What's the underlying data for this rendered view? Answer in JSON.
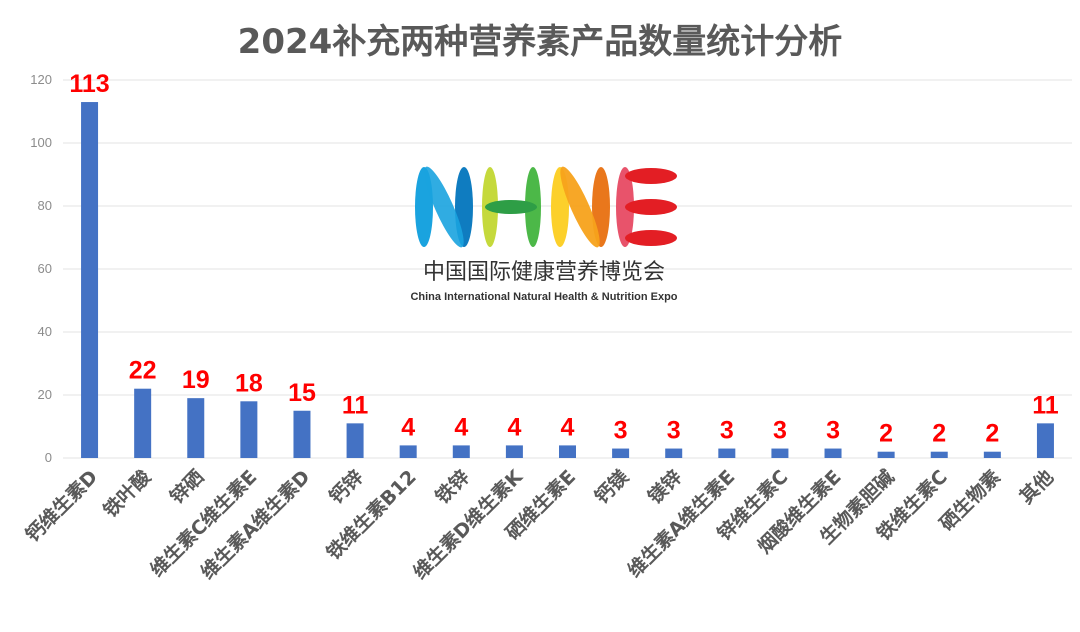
{
  "chart_data": {
    "type": "bar",
    "title": "2024补充两种营养素产品数量统计分析",
    "xlabel": "",
    "ylabel": "",
    "ylim": [
      0,
      120
    ],
    "yticks": [
      0,
      20,
      40,
      60,
      80,
      100,
      120
    ],
    "grid": true,
    "legend": "none",
    "bar_color": "#4472c4",
    "label_color": "#ff0000",
    "categories": [
      "钙维生素D",
      "铁叶酸",
      "锌硒",
      "维生素C维生素E",
      "维生素A维生素D",
      "钙锌",
      "铁维生素B12",
      "铁锌",
      "维生素D维生素K",
      "硒维生素E",
      "钙镁",
      "镁锌",
      "维生素A维生素E",
      "锌维生素C",
      "烟酸维生素E",
      "生物素胆碱",
      "铁维生素C",
      "硒生物素",
      "其他"
    ],
    "values": [
      113,
      22,
      19,
      18,
      15,
      11,
      4,
      4,
      4,
      4,
      3,
      3,
      3,
      3,
      3,
      2,
      2,
      2,
      11
    ]
  },
  "logo": {
    "letters": [
      "N",
      "H",
      "N",
      "E"
    ],
    "colors": [
      "#1aa3df",
      "#8dc63f",
      "#f7a21b",
      "#e31e24"
    ],
    "cn_name": "中国国际健康营养博览会",
    "en_name": "China International Natural Health & Nutrition Expo"
  }
}
